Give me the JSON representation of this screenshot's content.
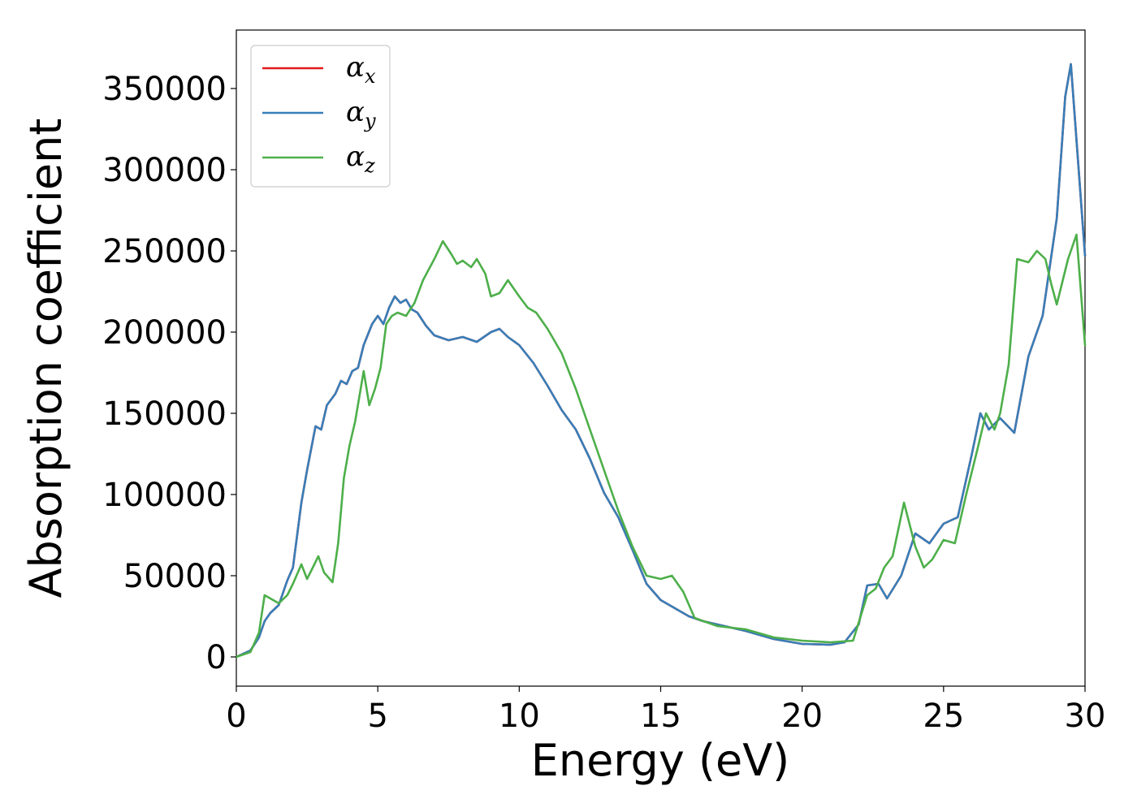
{
  "chart_data": {
    "type": "line",
    "title": "",
    "xlabel": "Energy (eV)",
    "ylabel": "Absorption coefficient",
    "xlim": [
      0,
      30
    ],
    "ylim": [
      -18000,
      386000
    ],
    "xticks": [
      0,
      5,
      10,
      15,
      20,
      25,
      30
    ],
    "yticks": [
      0,
      50000,
      100000,
      150000,
      200000,
      250000,
      300000,
      350000
    ],
    "legend_position": "top-left",
    "grid": false,
    "series": [
      {
        "name": "αx",
        "label_main": "α",
        "label_sub": "x",
        "color": "#e41a1c",
        "x": [
          0,
          0.5,
          0.8,
          1.0,
          1.2,
          1.5,
          1.8,
          2.0,
          2.3,
          2.5,
          2.8,
          3.0,
          3.2,
          3.5,
          3.7,
          3.9,
          4.1,
          4.3,
          4.5,
          4.8,
          5.0,
          5.2,
          5.4,
          5.6,
          5.8,
          6.0,
          6.2,
          6.4,
          6.7,
          7.0,
          7.5,
          8.0,
          8.5,
          9.0,
          9.3,
          9.6,
          10.0,
          10.5,
          11.0,
          11.5,
          12.0,
          12.5,
          13.0,
          13.5,
          14.0,
          14.5,
          15.0,
          15.5,
          16.0,
          16.5,
          17.0,
          18.0,
          19.0,
          20.0,
          21.0,
          21.5,
          22.0,
          22.3,
          22.7,
          23.0,
          23.5,
          24.0,
          24.5,
          25.0,
          25.5,
          26.0,
          26.3,
          26.6,
          27.0,
          27.5,
          28.0,
          28.5,
          29.0,
          29.3,
          29.5,
          30.0
        ],
        "y": [
          0,
          4000,
          12000,
          22000,
          27000,
          32000,
          47000,
          55000,
          95000,
          115000,
          142000,
          140000,
          155000,
          162000,
          170000,
          168000,
          176000,
          178000,
          192000,
          205000,
          210000,
          205000,
          215000,
          222000,
          218000,
          220000,
          214000,
          212000,
          204000,
          198000,
          195000,
          197000,
          194000,
          200000,
          202000,
          197000,
          192000,
          181000,
          167000,
          152000,
          140000,
          122000,
          101000,
          86000,
          66000,
          45000,
          35000,
          30000,
          25000,
          22000,
          20000,
          16000,
          11000,
          8000,
          7500,
          9000,
          20000,
          44000,
          45000,
          36000,
          50000,
          76000,
          70000,
          82000,
          86000,
          125000,
          150000,
          140000,
          147000,
          138000,
          185000,
          210000,
          270000,
          345000,
          365000,
          247000
        ]
      },
      {
        "name": "αy",
        "label_main": "α",
        "label_sub": "y",
        "color": "#377eb8",
        "x": [
          0,
          0.5,
          0.8,
          1.0,
          1.2,
          1.5,
          1.8,
          2.0,
          2.3,
          2.5,
          2.8,
          3.0,
          3.2,
          3.5,
          3.7,
          3.9,
          4.1,
          4.3,
          4.5,
          4.8,
          5.0,
          5.2,
          5.4,
          5.6,
          5.8,
          6.0,
          6.2,
          6.4,
          6.7,
          7.0,
          7.5,
          8.0,
          8.5,
          9.0,
          9.3,
          9.6,
          10.0,
          10.5,
          11.0,
          11.5,
          12.0,
          12.5,
          13.0,
          13.5,
          14.0,
          14.5,
          15.0,
          15.5,
          16.0,
          16.5,
          17.0,
          18.0,
          19.0,
          20.0,
          21.0,
          21.5,
          22.0,
          22.3,
          22.7,
          23.0,
          23.5,
          24.0,
          24.5,
          25.0,
          25.5,
          26.0,
          26.3,
          26.6,
          27.0,
          27.5,
          28.0,
          28.5,
          29.0,
          29.3,
          29.5,
          30.0
        ],
        "y": [
          0,
          4000,
          12000,
          22000,
          27000,
          32000,
          47000,
          55000,
          95000,
          115000,
          142000,
          140000,
          155000,
          162000,
          170000,
          168000,
          176000,
          178000,
          192000,
          205000,
          210000,
          205000,
          215000,
          222000,
          218000,
          220000,
          214000,
          212000,
          204000,
          198000,
          195000,
          197000,
          194000,
          200000,
          202000,
          197000,
          192000,
          181000,
          167000,
          152000,
          140000,
          122000,
          101000,
          86000,
          66000,
          45000,
          35000,
          30000,
          25000,
          22000,
          20000,
          16000,
          11000,
          8000,
          7500,
          9000,
          20000,
          44000,
          45000,
          36000,
          50000,
          76000,
          70000,
          82000,
          86000,
          125000,
          150000,
          140000,
          147000,
          138000,
          185000,
          210000,
          270000,
          345000,
          365000,
          247000
        ]
      },
      {
        "name": "αz",
        "label_main": "α",
        "label_sub": "z",
        "color": "#4daf4a",
        "x": [
          0,
          0.5,
          0.8,
          1.0,
          1.2,
          1.5,
          1.8,
          2.0,
          2.3,
          2.5,
          2.7,
          2.9,
          3.1,
          3.4,
          3.6,
          3.8,
          4.0,
          4.2,
          4.5,
          4.7,
          4.9,
          5.1,
          5.3,
          5.5,
          5.7,
          6.0,
          6.3,
          6.6,
          7.0,
          7.3,
          7.6,
          7.8,
          8.0,
          8.3,
          8.5,
          8.8,
          9.0,
          9.3,
          9.6,
          10.0,
          10.3,
          10.6,
          11.0,
          11.5,
          12.0,
          12.5,
          13.0,
          13.5,
          14.0,
          14.5,
          15.0,
          15.4,
          15.8,
          16.2,
          17.0,
          18.0,
          19.0,
          20.0,
          21.0,
          21.8,
          22.3,
          22.6,
          22.9,
          23.2,
          23.6,
          24.0,
          24.3,
          24.6,
          25.0,
          25.4,
          25.8,
          26.2,
          26.5,
          26.8,
          27.0,
          27.3,
          27.6,
          28.0,
          28.3,
          28.6,
          28.8,
          29.0,
          29.4,
          29.7,
          30.0
        ],
        "y": [
          0,
          3000,
          15000,
          38000,
          36000,
          33000,
          38000,
          45000,
          57000,
          48000,
          55000,
          62000,
          52000,
          46000,
          70000,
          110000,
          130000,
          145000,
          176000,
          155000,
          165000,
          178000,
          205000,
          210000,
          212000,
          210000,
          218000,
          232000,
          245000,
          256000,
          248000,
          242000,
          244000,
          240000,
          245000,
          236000,
          222000,
          224000,
          232000,
          222000,
          215000,
          212000,
          202000,
          187000,
          165000,
          140000,
          115000,
          90000,
          68000,
          50000,
          48000,
          50000,
          40000,
          24000,
          19000,
          17000,
          12000,
          10000,
          9000,
          10000,
          38000,
          42000,
          55000,
          62000,
          95000,
          68000,
          55000,
          60000,
          72000,
          70000,
          100000,
          128000,
          150000,
          140000,
          150000,
          180000,
          245000,
          243000,
          250000,
          245000,
          230000,
          217000,
          245000,
          260000,
          192000
        ]
      }
    ]
  }
}
